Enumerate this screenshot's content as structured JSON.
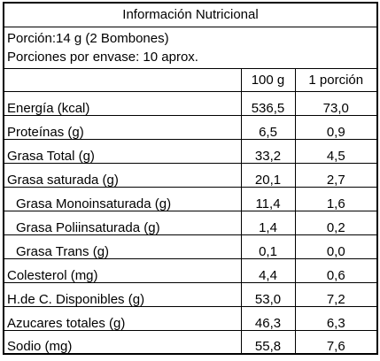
{
  "title": "Información Nutricional",
  "serving": {
    "portion": "Porción:14 g (2 Bombones)",
    "per_package": "Porciones por envase: 10 aprox."
  },
  "columns": {
    "blank": "",
    "per_100g": "100 g",
    "per_portion": "1 porción"
  },
  "rows": [
    {
      "label": "Energía (kcal)",
      "per_100g": "536,5",
      "per_portion": "73,0"
    },
    {
      "label": "Proteínas (g)",
      "per_100g": "6,5",
      "per_portion": "0,9"
    },
    {
      "label": "Grasa Total (g)",
      "per_100g": "33,2",
      "per_portion": "4,5"
    },
    {
      "label": "Grasa saturada (g)",
      "per_100g": "20,1",
      "per_portion": "2,7"
    },
    {
      "label": "Grasa Monoinsaturada (g)",
      "per_100g": "11,4",
      "per_portion": "1,6"
    },
    {
      "label": "Grasa Poliinsaturada (g)",
      "per_100g": "1,4",
      "per_portion": "0,2"
    },
    {
      "label": "Grasa Trans (g)",
      "per_100g": "0,1",
      "per_portion": "0,0"
    },
    {
      "label": "Colesterol (mg)",
      "per_100g": "4,4",
      "per_portion": "0,6"
    },
    {
      "label": "H.de C. Disponibles (g)",
      "per_100g": "53,0",
      "per_portion": "7,2"
    },
    {
      "label": "Azucares totales (g)",
      "per_100g": "46,3",
      "per_portion": "6,3"
    },
    {
      "label": "Sodio (mg)",
      "per_100g": "55,8",
      "per_portion": "7,6"
    }
  ]
}
